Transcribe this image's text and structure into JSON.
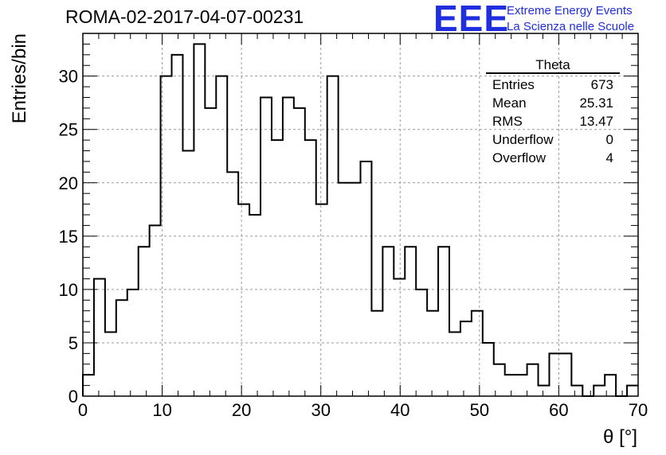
{
  "title": "ROMA-02-2017-04-07-00231",
  "logo": {
    "mark": "EEE",
    "line1": "Extreme Energy Events",
    "line2": "La Scienza nelle Scuole",
    "color": "#1f2fe0"
  },
  "stats_box": {
    "name": "Theta",
    "rows": [
      {
        "label": "Entries",
        "value": "673"
      },
      {
        "label": "Mean",
        "value": "25.31"
      },
      {
        "label": "RMS",
        "value": "13.47"
      },
      {
        "label": "Underflow",
        "value": "0"
      },
      {
        "label": "Overflow",
        "value": "4"
      }
    ]
  },
  "chart_data": {
    "type": "bar",
    "histogram": true,
    "title": "ROMA-02-2017-04-07-00231",
    "xlabel": "θ [°]",
    "ylabel": "Entries/bin",
    "xlim": [
      0,
      70
    ],
    "ylim": [
      0,
      34
    ],
    "grid": true,
    "legend": "none",
    "line_color": "#000000",
    "bin_width": 1.4,
    "bin_edges_start": 0,
    "xticks": [
      0,
      10,
      20,
      30,
      40,
      50,
      60,
      70
    ],
    "yticks": [
      0,
      5,
      10,
      15,
      20,
      25,
      30
    ],
    "values": [
      2,
      11,
      6,
      9,
      10,
      14,
      16,
      30,
      32,
      23,
      33,
      27,
      30,
      21,
      18,
      17,
      28,
      24,
      28,
      27,
      24,
      18,
      30,
      20,
      20,
      22,
      8,
      14,
      11,
      14,
      10,
      8,
      14,
      6,
      7,
      8,
      5,
      3,
      2,
      2,
      3,
      1,
      4,
      4,
      1,
      0,
      1,
      2,
      0,
      1
    ]
  }
}
